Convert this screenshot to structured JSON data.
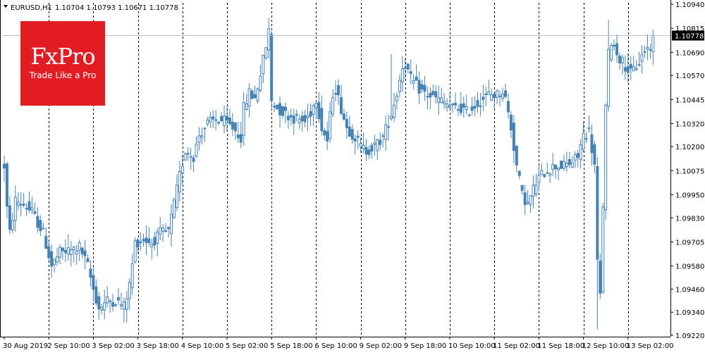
{
  "header": {
    "symbol": "EURUSD,H1",
    "ohlc": "1.10704 1.10793 1.10671 1.10778"
  },
  "logo": {
    "name": "FxPro",
    "tagline": "Trade Like a Pro",
    "color": "#e31c23"
  },
  "colors": {
    "candle": "#4682b4",
    "grid": "#000000",
    "current_line": "#c0c0c0",
    "price_badge_bg": "#000000",
    "price_badge_text": "#ffffff"
  },
  "current_price": {
    "value": 1.10778,
    "label": "1.10778"
  },
  "chart_data": {
    "type": "candlestick",
    "timeframe": "H1",
    "ylim": [
      1.0922,
      1.1094
    ],
    "y_ticks": [
      "1.10940",
      "1.10815",
      "1.10690",
      "1.10570",
      "1.10445",
      "1.10320",
      "1.10200",
      "1.10075",
      "1.09950",
      "1.09830",
      "1.09705",
      "1.09580",
      "1.09460",
      "1.09340",
      "1.09220"
    ],
    "x_ticks": [
      "30 Aug 2019",
      "2 Sep 10:00",
      "3 Sep 02:00",
      "3 Sep 18:00",
      "4 Sep 10:00",
      "5 Sep 02:00",
      "5 Sep 18:00",
      "6 Sep 10:00",
      "9 Sep 02:00",
      "9 Sep 18:00",
      "10 Sep 10:00",
      "11 Sep 02:00",
      "11 Sep 18:00",
      "12 Sep 10:00",
      "13 Sep 02:00"
    ],
    "x_tick_index": [
      0,
      16,
      32,
      48,
      64,
      80,
      96,
      112,
      128,
      144,
      160,
      176,
      192,
      208,
      224
    ],
    "grid": "vertical dotted at each x tick",
    "path": [
      [
        0,
        1.101
      ],
      [
        1,
        1.0988
      ],
      [
        2,
        1.0975
      ],
      [
        4,
        1.0992
      ],
      [
        7,
        1.099
      ],
      [
        10,
        1.0986
      ],
      [
        14,
        1.0975
      ],
      [
        17,
        1.0958
      ],
      [
        20,
        1.0965
      ],
      [
        24,
        1.0966
      ],
      [
        27,
        1.0968
      ],
      [
        30,
        1.0958
      ],
      [
        32,
        1.0946
      ],
      [
        34,
        1.0936
      ],
      [
        37,
        1.094
      ],
      [
        40,
        1.094
      ],
      [
        43,
        1.0937
      ],
      [
        45,
        1.0948
      ],
      [
        47,
        1.097
      ],
      [
        50,
        1.0972
      ],
      [
        53,
        1.097
      ],
      [
        56,
        1.0975
      ],
      [
        59,
        1.0976
      ],
      [
        61,
        1.099
      ],
      [
        63,
        1.1005
      ],
      [
        65,
        1.1018
      ],
      [
        68,
        1.1015
      ],
      [
        70,
        1.1026
      ],
      [
        73,
        1.1032
      ],
      [
        76,
        1.1034
      ],
      [
        79,
        1.1033
      ],
      [
        82,
        1.103
      ],
      [
        85,
        1.1025
      ],
      [
        86,
        1.104
      ],
      [
        88,
        1.1048
      ],
      [
        90,
        1.1045
      ],
      [
        92,
        1.1058
      ],
      [
        94,
        1.1072
      ],
      [
        95,
        1.108
      ],
      [
        96,
        1.1044
      ],
      [
        98,
        1.104
      ],
      [
        101,
        1.1037
      ],
      [
        104,
        1.1035
      ],
      [
        106,
        1.1034
      ],
      [
        108,
        1.1033
      ],
      [
        110,
        1.1038
      ],
      [
        112,
        1.1045
      ],
      [
        114,
        1.103
      ],
      [
        116,
        1.1023
      ],
      [
        118,
        1.1048
      ],
      [
        119,
        1.105
      ],
      [
        121,
        1.104
      ],
      [
        123,
        1.103
      ],
      [
        126,
        1.1025
      ],
      [
        128,
        1.102
      ],
      [
        130,
        1.1018
      ],
      [
        133,
        1.102
      ],
      [
        136,
        1.1025
      ],
      [
        138,
        1.1033
      ],
      [
        139,
        1.1037
      ],
      [
        141,
        1.1048
      ],
      [
        143,
        1.1062
      ],
      [
        144,
        1.1063
      ],
      [
        146,
        1.1055
      ],
      [
        149,
        1.105
      ],
      [
        152,
        1.1047
      ],
      [
        155,
        1.1045
      ],
      [
        158,
        1.1043
      ],
      [
        161,
        1.104
      ],
      [
        164,
        1.104
      ],
      [
        166,
        1.1038
      ],
      [
        168,
        1.104
      ],
      [
        171,
        1.1044
      ],
      [
        174,
        1.1047
      ],
      [
        177,
        1.1047
      ],
      [
        179,
        1.1049
      ],
      [
        180,
        1.1045
      ],
      [
        182,
        1.103
      ],
      [
        184,
        1.101
      ],
      [
        186,
        1.0995
      ],
      [
        188,
        1.099
      ],
      [
        190,
        1.0998
      ],
      [
        192,
        1.1004
      ],
      [
        195,
        1.1008
      ],
      [
        198,
        1.101
      ],
      [
        201,
        1.101
      ],
      [
        204,
        1.1012
      ],
      [
        206,
        1.1015
      ],
      [
        208,
        1.1026
      ],
      [
        210,
        1.1028
      ],
      [
        212,
        1.101
      ],
      [
        213,
        1.096
      ],
      [
        214,
        1.0942
      ],
      [
        215,
        1.099
      ],
      [
        216,
        1.104
      ],
      [
        217,
        1.1068
      ],
      [
        218,
        1.1075
      ],
      [
        219,
        1.1072
      ],
      [
        221,
        1.1066
      ],
      [
        223,
        1.1062
      ],
      [
        225,
        1.1058
      ],
      [
        226,
        1.106
      ],
      [
        228,
        1.1064
      ],
      [
        230,
        1.107
      ],
      [
        232,
        1.1072
      ],
      [
        233,
        1.10778
      ]
    ],
    "spikes": [
      {
        "index": 95,
        "high": 1.1085
      },
      {
        "index": 139,
        "high": 1.1068
      },
      {
        "index": 190,
        "low": 1.0988
      },
      {
        "index": 213,
        "low": 1.0925
      },
      {
        "index": 217,
        "high": 1.1086
      },
      {
        "index": 62,
        "low": 1.0987
      },
      {
        "index": 34,
        "low": 1.093
      },
      {
        "index": 0,
        "high": 1.1012
      }
    ]
  }
}
